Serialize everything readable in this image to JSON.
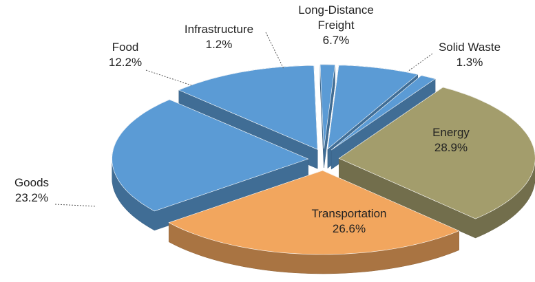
{
  "chart_data": {
    "type": "pie3d",
    "categories": [
      "Energy",
      "Transportation",
      "Goods",
      "Food",
      "Infrastructure",
      "Long-Distance Freight",
      "Solid Waste"
    ],
    "values": [
      28.9,
      26.6,
      23.2,
      12.2,
      1.2,
      6.7,
      1.3
    ],
    "value_labels": [
      "28.9%",
      "26.6%",
      "23.2%",
      "12.2%",
      "1.2%",
      "6.7%",
      "1.3%"
    ],
    "colors": [
      "#a39d6c",
      "#f2a65e",
      "#5b9bd5",
      "#5b9bd5",
      "#5b9bd5",
      "#5b9bd5",
      "#5b9bd5"
    ]
  }
}
